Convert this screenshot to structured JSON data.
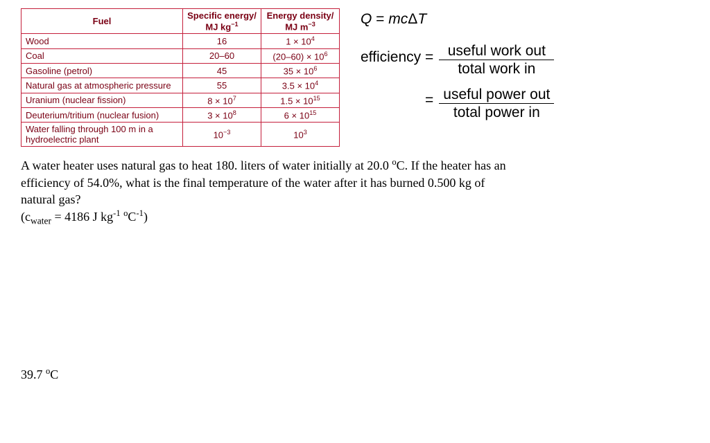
{
  "table": {
    "headers": {
      "fuel": "Fuel",
      "specific_energy_line1": "Specific energy/",
      "specific_energy_line2": "MJ kg",
      "specific_energy_exp": "−1",
      "energy_density_line1": "Energy density/",
      "energy_density_line2": "MJ m",
      "energy_density_exp": "−3"
    },
    "rows": [
      {
        "fuel": "Wood",
        "se": "16",
        "ed_base": "1 × 10",
        "ed_exp": "4"
      },
      {
        "fuel": "Coal",
        "se": "20–60",
        "ed_base": "(20–60) × 10",
        "ed_exp": "6"
      },
      {
        "fuel": "Gasoline (petrol)",
        "se": "45",
        "ed_base": "35 × 10",
        "ed_exp": "6"
      },
      {
        "fuel": "Natural gas at atmospheric pressure",
        "se": "55",
        "ed_base": "3.5 × 10",
        "ed_exp": "4"
      },
      {
        "fuel": "Uranium (nuclear fission)",
        "se_base": "8 × 10",
        "se_exp": "7",
        "ed_base": "1.5 × 10",
        "ed_exp": "15"
      },
      {
        "fuel": "Deuterium/tritium (nuclear fusion)",
        "se_base": "3 × 10",
        "se_exp": "8",
        "ed_base": "6 × 10",
        "ed_exp": "15"
      },
      {
        "fuel": "Water falling through 100 m in a hydroelectric plant",
        "se_base": "10",
        "se_exp": "−3",
        "ed_base": "10",
        "ed_exp": "3"
      }
    ]
  },
  "formulas": {
    "heat": {
      "Q": "Q",
      "eq": " = ",
      "m": "m",
      "c": "c",
      "delta": "Δ",
      "T": "T"
    },
    "efficiency_label": "efficiency",
    "eq_sign": "=",
    "frac1_num": "useful work out",
    "frac1_den": "total work in",
    "frac2_num": "useful power out",
    "frac2_den": "total power in"
  },
  "problem": {
    "line1a": "A water heater uses natural gas to heat 180. liters of water initially at 20.0 ",
    "line1_degC": "C.  If the heater has an",
    "line2": "efficiency of 54.0%, what is the final temperature of the water after it has burned 0.500 kg of",
    "line3": "natural gas?",
    "cwater_open": "(c",
    "cwater_sub": "water",
    "cwater_mid": " = 4186 J kg",
    "cwater_exp1": "-1",
    "cwater_sp": " ",
    "cwater_C": "C",
    "cwater_exp2": "-1",
    "cwater_close": ")"
  },
  "answer": {
    "value": "39.7 ",
    "unit_C": "C"
  }
}
